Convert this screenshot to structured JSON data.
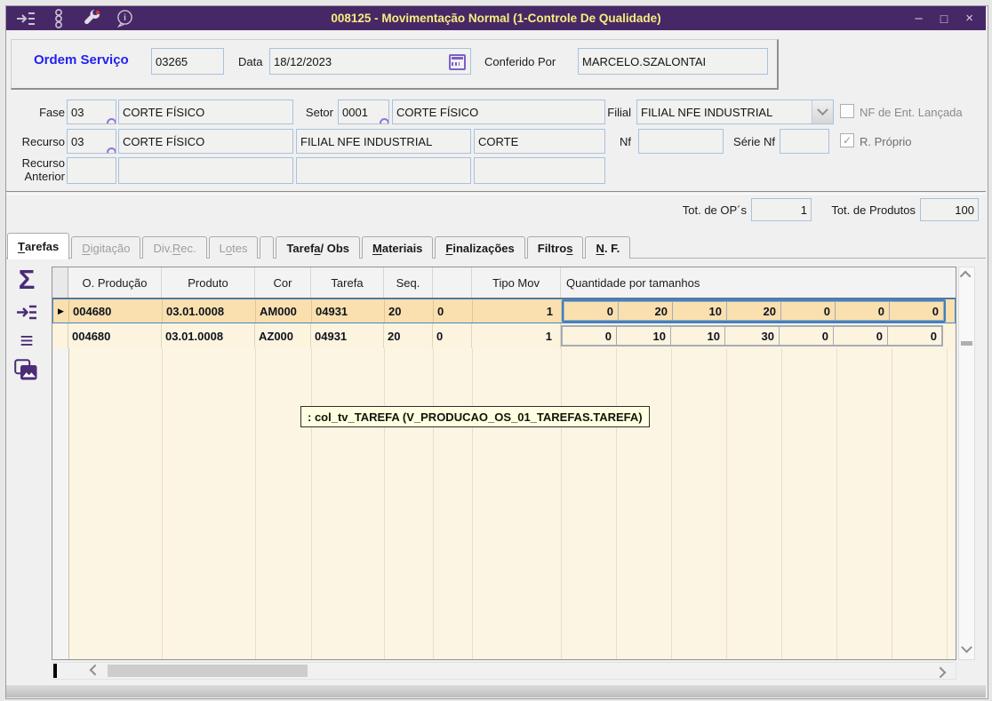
{
  "titlebar": {
    "title": "008125 - Movimentação Normal (1-Controle De Qualidade)",
    "icons": [
      "insert-record-icon",
      "chain-icon",
      "wrench-icon",
      "info-icon"
    ],
    "minimize_glyph": "–",
    "maximize_glyph": "□",
    "close_glyph": "×"
  },
  "form": {
    "ordem_servico": {
      "label": "Ordem Serviço",
      "value": "03265"
    },
    "data": {
      "label": "Data",
      "value": "18/12/2023"
    },
    "conferido": {
      "label": "Conferido Por",
      "value": "MARCELO.SZALONTAI"
    }
  },
  "fase": {
    "label": "Fase",
    "code": "03",
    "desc": "CORTE FÍSICO"
  },
  "setor": {
    "label": "Setor",
    "code": "0001",
    "desc": "CORTE FÍSICO"
  },
  "filial": {
    "label": "Filial",
    "value": "FILIAL NFE INDUSTRIAL"
  },
  "nf_ent": {
    "label": "NF de Ent. Lançada",
    "checked": false
  },
  "recurso": {
    "label": "Recurso",
    "code": "03",
    "desc": "CORTE FÍSICO",
    "filial": "FILIAL NFE INDUSTRIAL",
    "tipo": "CORTE"
  },
  "nf": {
    "label": "Nf",
    "value": ""
  },
  "serie_nf": {
    "label": "Série Nf",
    "value": ""
  },
  "r_proprio": {
    "label": "R. Próprio",
    "checked": true
  },
  "recurso_anterior": {
    "label_line1": "Recurso",
    "label_line2": "Anterior",
    "values": [
      "",
      "",
      "",
      ""
    ]
  },
  "totals": {
    "op_label": "Tot. de OP´s",
    "op_value": "1",
    "prod_label": "Tot. de Produtos",
    "prod_value": "100"
  },
  "tabs": [
    {
      "label": "Tarefas",
      "accel": 0,
      "state": "active"
    },
    {
      "label": "Digitação",
      "accel": 0,
      "state": "disabled"
    },
    {
      "label": "Div. Rec.",
      "accel": 5,
      "state": "disabled"
    },
    {
      "label": "Lotes",
      "accel": 1,
      "state": "disabled"
    },
    {
      "spacer": true
    },
    {
      "label": "Tarefa / Obs",
      "accel": 5,
      "state": "normal"
    },
    {
      "label": "Materiais",
      "accel": 0,
      "state": "normal"
    },
    {
      "label": "Finalizações",
      "accel": 0,
      "state": "normal"
    },
    {
      "label": "Filtros",
      "accel": 6,
      "state": "normal"
    },
    {
      "label": "N. F.",
      "accel": 0,
      "state": "normal"
    }
  ],
  "side_toolbar": {
    "sum_glyph": "Σ",
    "lines_glyph": "≡"
  },
  "grid": {
    "columns": [
      "O. Produção",
      "Produto",
      "Cor",
      "Tarefa",
      "Seq.",
      "",
      "Tipo Mov",
      "Quantidade por tamanhos"
    ],
    "rows": [
      {
        "selected": true,
        "op": "004680",
        "produto": "03.01.0008",
        "cor": "AM000",
        "tarefa": "04931",
        "seq": "20",
        "flag": "0",
        "tipo_mov": "1",
        "qtys": [
          "0",
          "20",
          "10",
          "20",
          "0",
          "0",
          "0"
        ]
      },
      {
        "selected": false,
        "op": "004680",
        "produto": "03.01.0008",
        "cor": "AZ000",
        "tarefa": "04931",
        "seq": "20",
        "flag": "0",
        "tipo_mov": "1",
        "qtys": [
          "0",
          "10",
          "10",
          "30",
          "0",
          "0",
          "0"
        ]
      }
    ]
  },
  "tooltip": {
    "text": ": col_tv_TAREFA (V_PRODUCAO_OS_01_TAREFAS.TAREFA)"
  },
  "colors": {
    "titlebar": "#472866",
    "title_text": "#F5EE7E",
    "accent_blue": "#2222F0",
    "selected_row": "#F9E0AE",
    "row_bg": "#FCF4DF",
    "grid_empty": "#FCF5E3",
    "selection_border": "#3F80C2",
    "tooltip_bg": "#FFFFE1",
    "icon_purple": "#4A2C78",
    "field_border": "#A9C2DC"
  }
}
